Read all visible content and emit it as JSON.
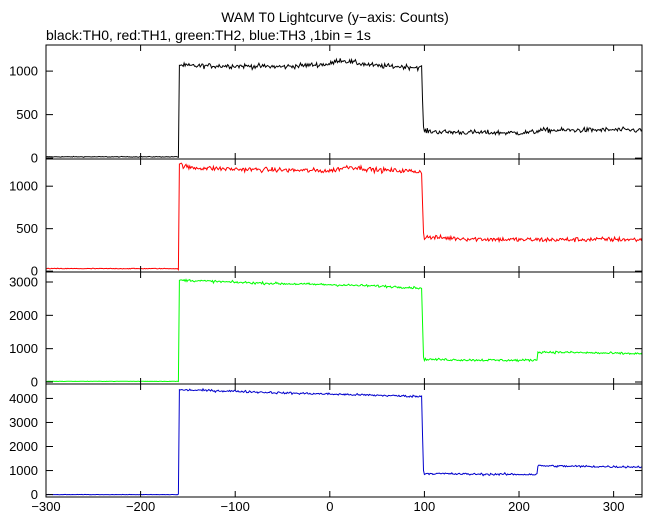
{
  "chart_data": {
    "type": "line",
    "title": "WAM T0 Lightcurve (y−axis: Counts)",
    "subtitle": "black:TH0, red:TH1, green:TH2, blue:TH3 ,1bin = 1s",
    "xlim": [
      -300,
      330
    ],
    "x_ticks": [
      "−300",
      "−200",
      "−100",
      "0",
      "100",
      "200",
      "300"
    ],
    "x_tick_values": [
      -300,
      -200,
      -100,
      0,
      100,
      200,
      300
    ],
    "panels": [
      {
        "series": "TH0",
        "color": "#000000",
        "ylim": [
          -10,
          1300
        ],
        "y_ticks": [
          "0",
          "500",
          "1000"
        ],
        "y_tick_values": [
          0,
          500,
          1000
        ],
        "x": [
          -300,
          -160,
          -159,
          -150,
          -100,
          -50,
          -20,
          0,
          10,
          20,
          30,
          50,
          80,
          97,
          99,
          100,
          120,
          150,
          200,
          218,
          220,
          250,
          300,
          330
        ],
        "y": [
          15,
          15,
          1070,
          1060,
          1060,
          1050,
          1070,
          1080,
          1130,
          1110,
          1090,
          1060,
          1050,
          1040,
          350,
          310,
          300,
          295,
          290,
          300,
          320,
          320,
          325,
          320
        ],
        "noise": 28
      },
      {
        "series": "TH1",
        "color": "#ff0000",
        "ylim": [
          -10,
          1320
        ],
        "y_ticks": [
          "0",
          "500",
          "1000"
        ],
        "y_tick_values": [
          0,
          500,
          1000
        ],
        "x": [
          -300,
          -160,
          -159,
          -150,
          -100,
          -50,
          0,
          20,
          50,
          80,
          97,
          99,
          100,
          150,
          200,
          250,
          300,
          330
        ],
        "y": [
          30,
          30,
          1260,
          1220,
          1200,
          1190,
          1180,
          1230,
          1190,
          1180,
          1170,
          450,
          400,
          380,
          370,
          370,
          375,
          370
        ],
        "noise": 28
      },
      {
        "series": "TH2",
        "color": "#00ff00",
        "ylim": [
          -60,
          3300
        ],
        "y_ticks": [
          "0",
          "1000",
          "2000",
          "3000"
        ],
        "y_tick_values": [
          0,
          1000,
          2000,
          3000
        ],
        "x": [
          -300,
          -160,
          -159,
          -150,
          -100,
          -50,
          0,
          50,
          97,
          99,
          100,
          150,
          200,
          219,
          220,
          250,
          300,
          330
        ],
        "y": [
          20,
          20,
          3050,
          3050,
          2990,
          2950,
          2920,
          2880,
          2820,
          750,
          680,
          660,
          650,
          660,
          900,
          890,
          860,
          850
        ],
        "noise": 35
      },
      {
        "series": "TH3",
        "color": "#0000cc",
        "ylim": [
          -100,
          4600
        ],
        "y_ticks": [
          "0",
          "1000",
          "2000",
          "3000",
          "4000"
        ],
        "y_tick_values": [
          0,
          1000,
          2000,
          3000,
          4000
        ],
        "x": [
          -300,
          -160,
          -159,
          -150,
          -100,
          -50,
          0,
          50,
          97,
          99,
          100,
          150,
          200,
          219,
          220,
          250,
          300,
          330
        ],
        "y": [
          0,
          0,
          4350,
          4350,
          4300,
          4230,
          4180,
          4130,
          4080,
          1000,
          880,
          850,
          840,
          840,
          1200,
          1180,
          1160,
          1150
        ],
        "noise": 45
      }
    ]
  }
}
